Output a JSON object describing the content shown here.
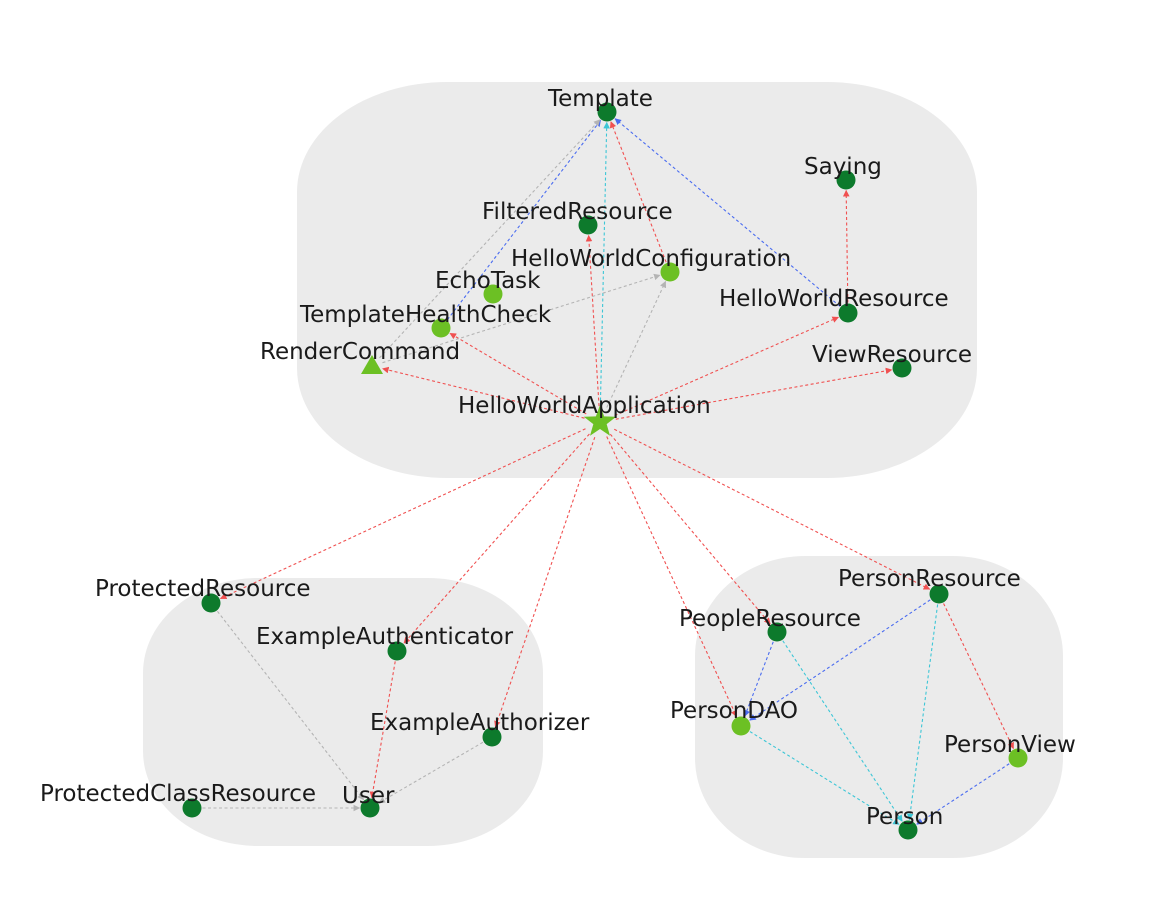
{
  "colors": {
    "cluster_fill": "#ebebeb",
    "node_dark": "#0d7a2c",
    "node_light": "#6cc024",
    "edge_red": "#f05050",
    "edge_blue": "#4a6cf0",
    "edge_cyan": "#3cc6d6",
    "edge_gray": "#b4b4b4"
  },
  "nodes": [
    {
      "id": "Template",
      "label": "Template",
      "shape": "circle",
      "color": "dark"
    },
    {
      "id": "Saying",
      "label": "Saying",
      "shape": "circle",
      "color": "dark"
    },
    {
      "id": "FilteredResource",
      "label": "FilteredResource",
      "shape": "circle",
      "color": "dark"
    },
    {
      "id": "HelloWorldConfiguration",
      "label": "HelloWorldConfiguration",
      "shape": "circle",
      "color": "light"
    },
    {
      "id": "EchoTask",
      "label": "EchoTask",
      "shape": "circle",
      "color": "light"
    },
    {
      "id": "HelloWorldResource",
      "label": "HelloWorldResource",
      "shape": "circle",
      "color": "dark"
    },
    {
      "id": "TemplateHealthCheck",
      "label": "TemplateHealthCheck",
      "shape": "circle",
      "color": "light"
    },
    {
      "id": "RenderCommand",
      "label": "RenderCommand",
      "shape": "triangle",
      "color": "light"
    },
    {
      "id": "ViewResource",
      "label": "ViewResource",
      "shape": "circle",
      "color": "dark"
    },
    {
      "id": "HelloWorldApplication",
      "label": "HelloWorldApplication",
      "shape": "star",
      "color": "light"
    },
    {
      "id": "ProtectedResource",
      "label": "ProtectedResource",
      "shape": "circle",
      "color": "dark"
    },
    {
      "id": "ExampleAuthenticator",
      "label": "ExampleAuthenticator",
      "shape": "circle",
      "color": "dark"
    },
    {
      "id": "ExampleAuthorizer",
      "label": "ExampleAuthorizer",
      "shape": "circle",
      "color": "dark"
    },
    {
      "id": "ProtectedClassResource",
      "label": "ProtectedClassResource",
      "shape": "circle",
      "color": "dark"
    },
    {
      "id": "User",
      "label": "User",
      "shape": "circle",
      "color": "dark"
    },
    {
      "id": "PersonResource",
      "label": "PersonResource",
      "shape": "circle",
      "color": "dark"
    },
    {
      "id": "PeopleResource",
      "label": "PeopleResource",
      "shape": "circle",
      "color": "dark"
    },
    {
      "id": "PersonDAO",
      "label": "PersonDAO",
      "shape": "circle",
      "color": "light"
    },
    {
      "id": "PersonView",
      "label": "PersonView",
      "shape": "circle",
      "color": "light"
    },
    {
      "id": "Person",
      "label": "Person",
      "shape": "circle",
      "color": "dark"
    }
  ],
  "edges": [
    {
      "from": "HelloWorldApplication",
      "to": "Template",
      "color": "cyan"
    },
    {
      "from": "HelloWorldApplication",
      "to": "FilteredResource",
      "color": "red"
    },
    {
      "from": "HelloWorldApplication",
      "to": "HelloWorldConfiguration",
      "color": "gray"
    },
    {
      "from": "HelloWorldApplication",
      "to": "TemplateHealthCheck",
      "color": "red"
    },
    {
      "from": "HelloWorldApplication",
      "to": "RenderCommand",
      "color": "red"
    },
    {
      "from": "HelloWorldApplication",
      "to": "HelloWorldResource",
      "color": "red"
    },
    {
      "from": "HelloWorldApplication",
      "to": "ViewResource",
      "color": "red"
    },
    {
      "from": "HelloWorldApplication",
      "to": "ProtectedResource",
      "color": "red"
    },
    {
      "from": "HelloWorldApplication",
      "to": "ExampleAuthenticator",
      "color": "red"
    },
    {
      "from": "HelloWorldApplication",
      "to": "ExampleAuthorizer",
      "color": "red"
    },
    {
      "from": "HelloWorldApplication",
      "to": "PeopleResource",
      "color": "red"
    },
    {
      "from": "HelloWorldApplication",
      "to": "PersonResource",
      "color": "red"
    },
    {
      "from": "HelloWorldApplication",
      "to": "PersonDAO",
      "color": "red"
    },
    {
      "from": "HelloWorldConfiguration",
      "to": "Template",
      "color": "red"
    },
    {
      "from": "HelloWorldResource",
      "to": "Template",
      "color": "blue"
    },
    {
      "from": "HelloWorldResource",
      "to": "Saying",
      "color": "red"
    },
    {
      "from": "TemplateHealthCheck",
      "to": "Template",
      "color": "blue"
    },
    {
      "from": "RenderCommand",
      "to": "Template",
      "color": "gray"
    },
    {
      "from": "RenderCommand",
      "to": "HelloWorldConfiguration",
      "color": "gray"
    },
    {
      "from": "ProtectedResource",
      "to": "User",
      "color": "gray"
    },
    {
      "from": "ProtectedClassResource",
      "to": "User",
      "color": "gray"
    },
    {
      "from": "ExampleAuthenticator",
      "to": "User",
      "color": "red"
    },
    {
      "from": "ExampleAuthorizer",
      "to": "User",
      "color": "gray"
    },
    {
      "from": "PeopleResource",
      "to": "PersonDAO",
      "color": "blue"
    },
    {
      "from": "PeopleResource",
      "to": "Person",
      "color": "cyan"
    },
    {
      "from": "PersonResource",
      "to": "PersonDAO",
      "color": "blue"
    },
    {
      "from": "PersonResource",
      "to": "Person",
      "color": "cyan"
    },
    {
      "from": "PersonResource",
      "to": "PersonView",
      "color": "red"
    },
    {
      "from": "PersonDAO",
      "to": "Person",
      "color": "cyan"
    },
    {
      "from": "PersonView",
      "to": "Person",
      "color": "blue"
    }
  ]
}
